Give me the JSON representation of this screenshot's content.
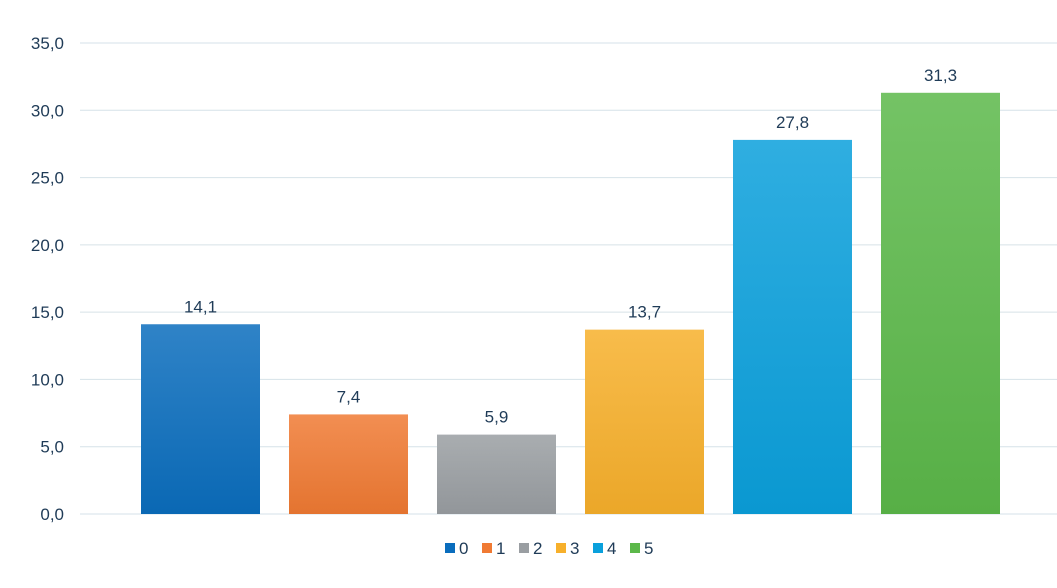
{
  "chart_data": {
    "type": "bar",
    "categories": [
      "0",
      "1",
      "2",
      "3",
      "4",
      "5"
    ],
    "values": [
      14.1,
      7.4,
      5.9,
      13.7,
      27.8,
      31.3
    ],
    "value_labels": [
      "14,1",
      "7,4",
      "5,9",
      "13,7",
      "27,8",
      "31,3"
    ],
    "colors": [
      "#0a6dbd",
      "#f07a33",
      "#9a9ea2",
      "#f7b02b",
      "#0aa0dc",
      "#5cb84a"
    ],
    "yticks": [
      0,
      5,
      10,
      15,
      20,
      25,
      30,
      35
    ],
    "ytick_labels": [
      "0,0",
      "5,0",
      "10,0",
      "15,0",
      "20,0",
      "25,0",
      "30,0",
      "35,0"
    ],
    "ylim": [
      0,
      35
    ],
    "grid": true,
    "legend": {
      "position": "bottom",
      "entries": [
        "0",
        "1",
        "2",
        "3",
        "4",
        "5"
      ]
    },
    "title": "",
    "xlabel": "",
    "ylabel": ""
  }
}
